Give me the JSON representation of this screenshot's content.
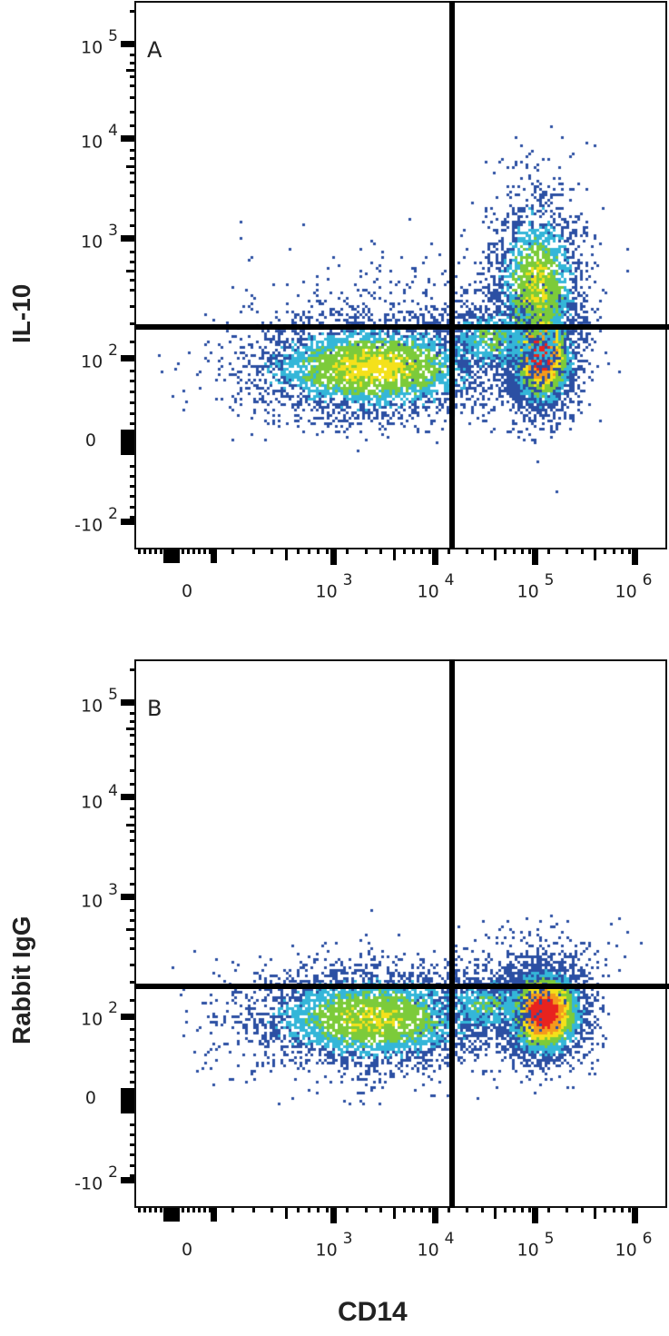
{
  "chart_data": [
    {
      "type": "scatter",
      "panel": "A",
      "title": "A",
      "xlabel": "CD14",
      "ylabel": "IL-10",
      "x_scale": "biexponential",
      "y_scale": "biexponential",
      "x_ticks": [
        "0",
        "10^3",
        "10^4",
        "10^5",
        "10^6"
      ],
      "y_ticks": [
        "-10^2",
        "0",
        "10^2",
        "10^3",
        "10^4",
        "10^5"
      ],
      "quadrant_gate": {
        "x": 12000,
        "y": 180
      },
      "populations": [
        {
          "name": "CD14- IL-10-",
          "x_center": 2500,
          "y_center": 80,
          "density": "medium"
        },
        {
          "name": "CD14+ IL-10- (dense)",
          "x_center": 80000,
          "y_center": 110,
          "density": "high"
        },
        {
          "name": "CD14+ IL-10+",
          "x_center": 70000,
          "y_center": 400,
          "density": "medium"
        }
      ],
      "grid": false,
      "legend": null
    },
    {
      "type": "scatter",
      "panel": "B",
      "title": "B",
      "xlabel": "CD14",
      "ylabel": "Rabbit IgG",
      "x_scale": "biexponential",
      "y_scale": "biexponential",
      "x_ticks": [
        "0",
        "10^3",
        "10^4",
        "10^5",
        "10^6"
      ],
      "y_ticks": [
        "-10^2",
        "0",
        "10^2",
        "10^3",
        "10^4",
        "10^5"
      ],
      "quadrant_gate": {
        "x": 12000,
        "y": 180
      },
      "populations": [
        {
          "name": "CD14- IgG-",
          "x_center": 2500,
          "y_center": 80,
          "density": "medium"
        },
        {
          "name": "CD14+ IgG- (dense)",
          "x_center": 90000,
          "y_center": 115,
          "density": "high"
        }
      ],
      "grid": false,
      "legend": null
    }
  ],
  "panels": [
    {
      "letter": "A",
      "ylabel": "IL-10"
    },
    {
      "letter": "B",
      "ylabel": "Rabbit IgG"
    }
  ],
  "y_tick_labels": [
    {
      "base": "10",
      "exp": "5"
    },
    {
      "base": "10",
      "exp": "4"
    },
    {
      "base": "10",
      "exp": "3"
    },
    {
      "base": "10",
      "exp": "2"
    },
    {
      "base": "0",
      "exp": ""
    },
    {
      "base": "-10",
      "exp": "2"
    }
  ],
  "x_tick_labels": [
    {
      "base": "0",
      "exp": ""
    },
    {
      "base": "10",
      "exp": "3"
    },
    {
      "base": "10",
      "exp": "4"
    },
    {
      "base": "10",
      "exp": "5"
    },
    {
      "base": "10",
      "exp": "6"
    }
  ],
  "x_axis_title": "CD14",
  "colors": {
    "low": "#2b4fa3",
    "midlow": "#34b6d8",
    "mid": "#7ccb3a",
    "midhigh": "#f4e11b",
    "high": "#e8231f",
    "gate": "#000000"
  }
}
